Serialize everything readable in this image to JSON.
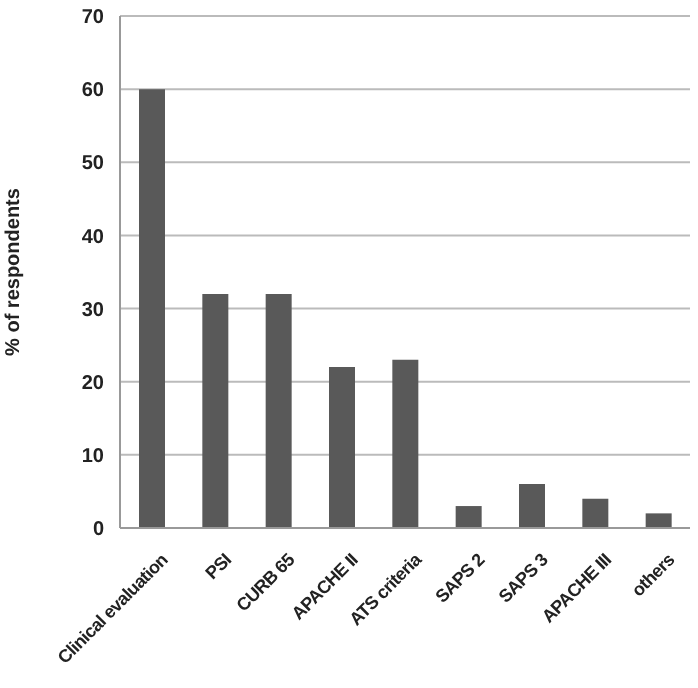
{
  "chart_data": {
    "type": "bar",
    "ylabel": "% of respondents",
    "categories": [
      "Clinical evaluation",
      "PSI",
      "CURB 65",
      "APACHE II",
      "ATS criteria",
      "SAPS 2",
      "SAPS 3",
      "APACHE III",
      "others"
    ],
    "values": [
      60,
      32,
      32,
      22,
      23,
      3,
      6,
      4,
      2
    ],
    "color": "#595959",
    "ylim": [
      0,
      70
    ],
    "yticks": [
      0,
      10,
      20,
      30,
      40,
      50,
      60,
      70
    ],
    "grid": "y"
  }
}
